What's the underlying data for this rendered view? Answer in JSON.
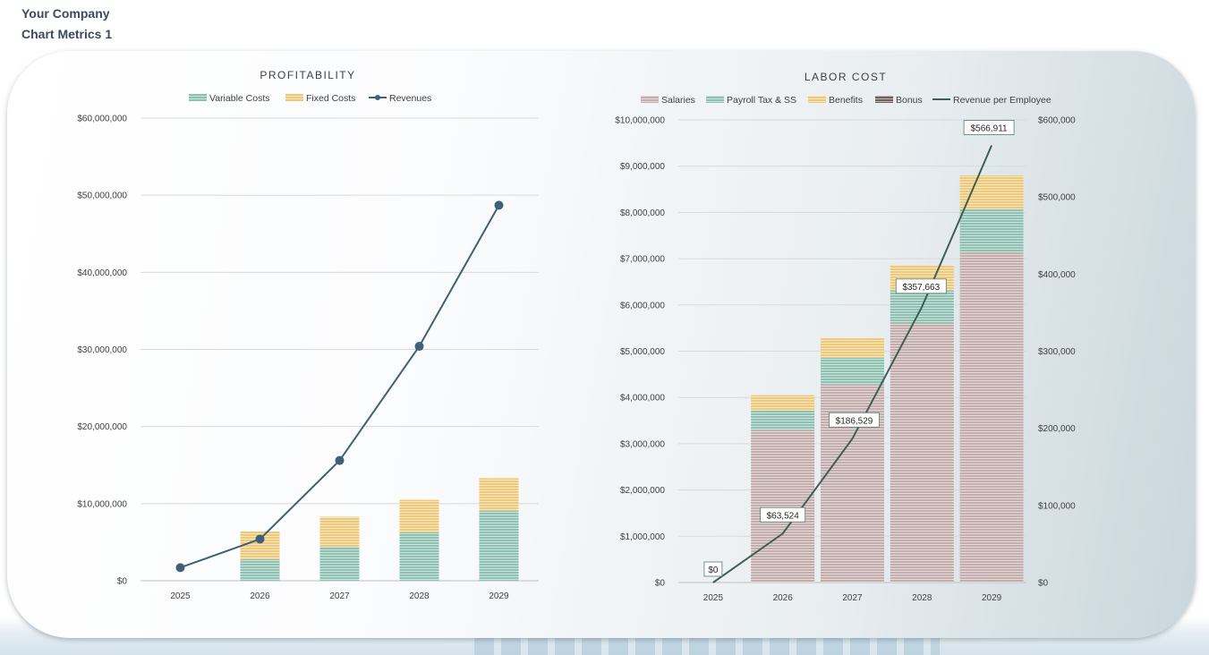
{
  "header": {
    "company": "Your Company",
    "report": "Chart Metrics 1"
  },
  "colors": {
    "variable_costs": "#8fc1b2",
    "fixed_costs": "#eec97a",
    "revenues": "#3f6079",
    "salaries": "#c3aead",
    "payroll": "#8fc1b2",
    "benefits": "#eec97a",
    "bonus": "#6f5f5f",
    "revenue_per_employee": "#3e5f53",
    "gridline": "#d9d9d9",
    "axis_text": "#404040"
  },
  "chart_data": [
    {
      "type": "bar",
      "title": "PROFITABILITY",
      "categories": [
        "2025",
        "2026",
        "2027",
        "2028",
        "2029"
      ],
      "series": [
        {
          "name": "Variable Costs",
          "kind": "stacked-bar",
          "values": [
            0,
            2800000,
            4400000,
            6300000,
            9100000
          ]
        },
        {
          "name": "Fixed Costs",
          "kind": "stacked-bar",
          "values": [
            0,
            3600000,
            3900000,
            4200000,
            4200000
          ]
        },
        {
          "name": "Revenues",
          "kind": "line",
          "values": [
            1700000,
            5400000,
            15600000,
            30400000,
            48700000
          ]
        }
      ],
      "ylim": [
        0,
        60000000
      ],
      "yticks": [
        "$0",
        "$10,000,000",
        "$20,000,000",
        "$30,000,000",
        "$40,000,000",
        "$50,000,000",
        "$60,000,000"
      ],
      "legend": "top",
      "grid": true
    },
    {
      "type": "bar",
      "title": "LABOR COST",
      "categories": [
        "2025",
        "2026",
        "2027",
        "2028",
        "2029"
      ],
      "series": [
        {
          "name": "Salaries",
          "kind": "stacked-bar",
          "values": [
            0,
            3300000,
            4280000,
            5600000,
            7150000
          ]
        },
        {
          "name": "Payroll Tax & SS",
          "kind": "stacked-bar",
          "values": [
            0,
            420000,
            580000,
            720000,
            920000
          ]
        },
        {
          "name": "Benefits",
          "kind": "stacked-bar",
          "values": [
            0,
            330000,
            420000,
            540000,
            730000
          ]
        },
        {
          "name": "Bonus",
          "kind": "stacked-bar",
          "values": [
            0,
            0,
            0,
            0,
            0
          ]
        },
        {
          "name": "Revenue per Employee",
          "kind": "line-secondary",
          "values": [
            0,
            63524,
            186529,
            357663,
            566911
          ],
          "labels": [
            "$0",
            "$63,524",
            "$186,529",
            "$357,663",
            "$566,911"
          ]
        }
      ],
      "ylim": [
        0,
        10000000
      ],
      "yticks": [
        "$0",
        "$1,000,000",
        "$2,000,000",
        "$3,000,000",
        "$4,000,000",
        "$5,000,000",
        "$6,000,000",
        "$7,000,000",
        "$8,000,000",
        "$9,000,000",
        "$10,000,000"
      ],
      "y2lim": [
        0,
        600000
      ],
      "y2ticks": [
        "$0",
        "$100,000",
        "$200,000",
        "$300,000",
        "$400,000",
        "$500,000",
        "$600,000"
      ],
      "legend": "top",
      "grid": true
    }
  ]
}
